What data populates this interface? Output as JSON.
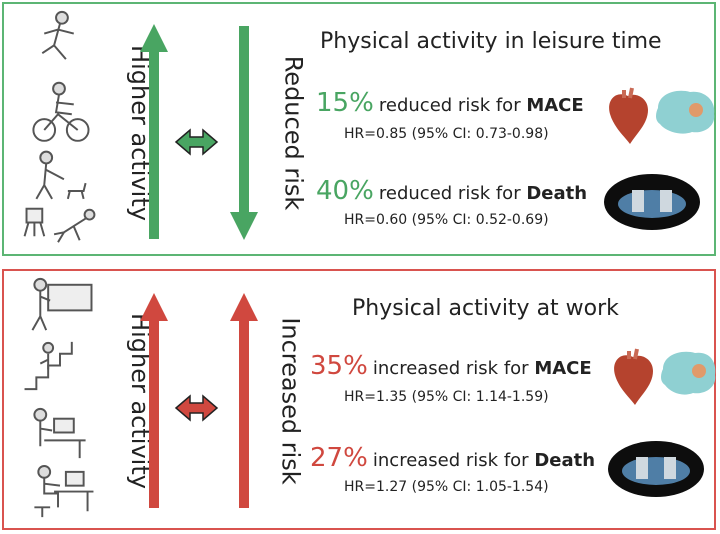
{
  "colors": {
    "green": "#49a562",
    "red": "#d0483f",
    "green_border": "#5cb574",
    "red_border": "#d9534f"
  },
  "panels": [
    {
      "id": "leisure",
      "title": "Physical activity in leisure time",
      "left_label": "Higher activity",
      "right_label": "Reduced risk",
      "icons": [
        "running-person-icon",
        "cycling-person-icon",
        "dog-walking-person-icon",
        "reclining-person-icon"
      ],
      "stats": [
        {
          "percent": "15%",
          "text": "reduced risk for ",
          "outcome": "MACE",
          "hr": "HR=0.85 (95% CI: 0.73-0.98)",
          "image": "heart-brain-icon"
        },
        {
          "percent": "40%",
          "text": "reduced risk for ",
          "outcome": "Death",
          "hr": "HR=0.60 (95% CI: 0.52-0.69)",
          "image": "coffin-icon"
        }
      ]
    },
    {
      "id": "work",
      "title": "Physical activity at work",
      "left_label": "Higher activity",
      "right_label": "Increased risk",
      "icons": [
        "carrying-box-person-icon",
        "stair-climbing-person-icon",
        "standing-desk-person-icon",
        "seated-desk-person-icon"
      ],
      "stats": [
        {
          "percent": "35%",
          "text": "increased risk for ",
          "outcome": "MACE",
          "hr": "HR=1.35 (95% CI: 1.14-1.59)",
          "image": "heart-brain-icon"
        },
        {
          "percent": "27%",
          "text": "increased risk for ",
          "outcome": "Death",
          "hr": "HR=1.27 (95% CI: 1.05-1.54)",
          "image": "coffin-icon"
        }
      ]
    }
  ]
}
